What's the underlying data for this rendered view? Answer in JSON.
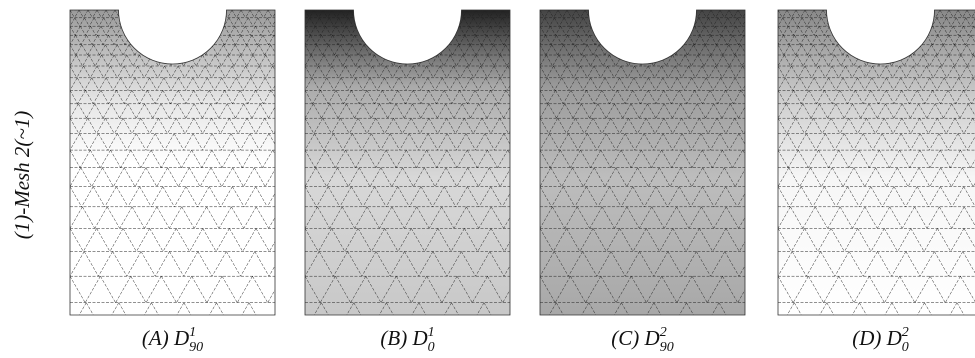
{
  "row_label": "(1)-Mesh 2(~1)",
  "panels": [
    {
      "label": "(A)",
      "symbol": "D",
      "sup": "1",
      "sub": "90"
    },
    {
      "label": "(B)",
      "symbol": "D",
      "sup": "1",
      "sub": "0"
    },
    {
      "label": "(C)",
      "symbol": "D",
      "sup": "2",
      "sub": "90"
    },
    {
      "label": "(D)",
      "symbol": "D",
      "sup": "2",
      "sub": "0"
    }
  ]
}
